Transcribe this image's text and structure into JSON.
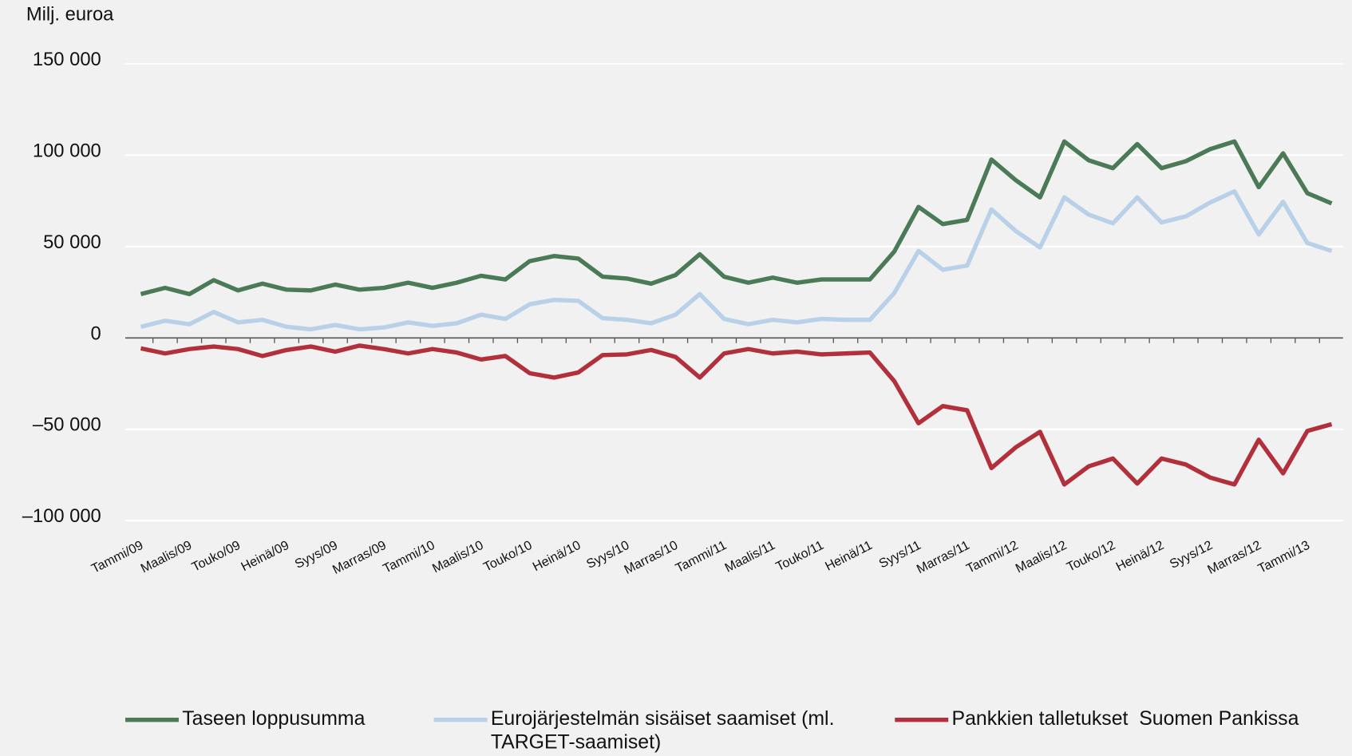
{
  "chart_data": {
    "type": "line",
    "y_label": "Milj. euroa",
    "categories": [
      "Tammi/09",
      null,
      "Maalis/09",
      null,
      "Touko/09",
      null,
      "Heinä/09",
      null,
      "Syys/09",
      null,
      "Marras/09",
      null,
      "Tammi/10",
      null,
      "Maalis/10",
      null,
      "Touko/10",
      null,
      "Heinä/10",
      null,
      "Syys/10",
      null,
      "Marras/10",
      null,
      "Tammi/11",
      null,
      "Maalis/11",
      null,
      "Touko/11",
      null,
      "Heinä/11",
      null,
      "Syys/11",
      null,
      "Marras/11",
      null,
      "Tammi/12",
      null,
      "Maalis/12",
      null,
      "Touko/12",
      null,
      "Heinä/12",
      null,
      "Syys/12",
      null,
      "Marras/12",
      null,
      "Tammi/13",
      null
    ],
    "series": [
      {
        "name": "Taseen loppusumma",
        "color": "#4b7a56",
        "values": [
          24000,
          27400,
          24000,
          31600,
          26000,
          29700,
          26400,
          26000,
          29200,
          26400,
          27400,
          30200,
          27400,
          30200,
          34000,
          32000,
          42000,
          44800,
          43400,
          33500,
          32500,
          29700,
          34400,
          45800,
          33500,
          30200,
          33000,
          30200,
          32000,
          32000,
          32000,
          47200,
          71700,
          62300,
          64600,
          97600,
          86300,
          76900,
          107500,
          97200,
          92900,
          106100,
          92900,
          96700,
          103300,
          107500,
          82500,
          101000,
          79200,
          73600
        ]
      },
      {
        "name": "Eurojärjestelmän sisäiset saamiset (ml. TARGET-saamiset)",
        "color": "#b9d0e9",
        "values": [
          6100,
          9400,
          7500,
          14200,
          8500,
          9900,
          6100,
          4700,
          7100,
          4700,
          5700,
          8500,
          6600,
          8000,
          12700,
          10400,
          18400,
          20800,
          20300,
          10800,
          9900,
          8000,
          12700,
          24000,
          10400,
          7500,
          9900,
          8500,
          10400,
          9900,
          9900,
          24500,
          47600,
          37300,
          39600,
          70300,
          58500,
          49500,
          76900,
          67500,
          62700,
          76900,
          63200,
          66500,
          74100,
          80200,
          56600,
          74500,
          51900,
          47600
        ]
      },
      {
        "name": "Pankkien talletukset  Suomen Pankissa",
        "color": "#b1303b",
        "values": [
          -5700,
          -8500,
          -6100,
          -4700,
          -6100,
          -9900,
          -6600,
          -4700,
          -7500,
          -4200,
          -6100,
          -8500,
          -6100,
          -8000,
          -11800,
          -9900,
          -19300,
          -21700,
          -18900,
          -9400,
          -9000,
          -6600,
          -10400,
          -21700,
          -8500,
          -6100,
          -8500,
          -7500,
          -9000,
          -8500,
          -8000,
          -23600,
          -46700,
          -37300,
          -39600,
          -71200,
          -59900,
          -51400,
          -80200,
          -70300,
          -66000,
          -79700,
          -66000,
          -69300,
          -76400,
          -80200,
          -55700,
          -74100,
          -50900,
          -47200
        ]
      }
    ],
    "ylim": [
      -100000,
      150000
    ],
    "yticks": [
      {
        "value": -100000,
        "label": "–100 000"
      },
      {
        "value": -50000,
        "label": "–50 000"
      },
      0,
      {
        "value": 50000,
        "label": "50 000"
      },
      {
        "value": 100000,
        "label": "100 000"
      },
      {
        "value": 150000,
        "label": "150 000"
      }
    ],
    "grid": true
  }
}
